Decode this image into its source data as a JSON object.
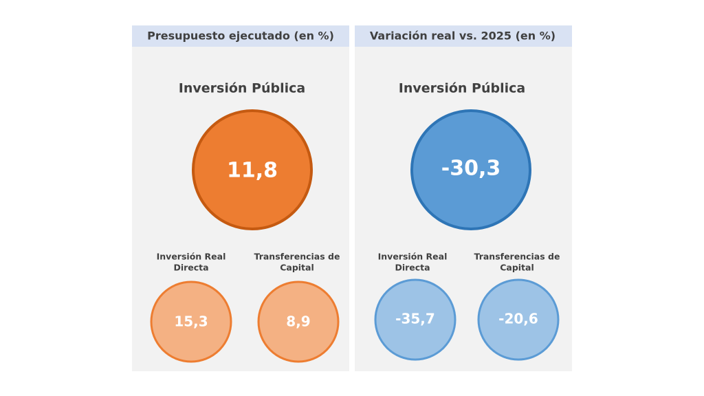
{
  "panels": [
    {
      "header": "Presupuesto ejecutado (en %)",
      "title": "Inversión Pública",
      "value": "11,8",
      "items": [
        {
          "label": [
            "Inversión Real",
            "Directa"
          ],
          "value": "15,3"
        },
        {
          "label": [
            "Transferencias de",
            "Capital"
          ],
          "value": "8,9"
        }
      ]
    },
    {
      "header": "Variación real vs. 2025 (en %)",
      "title": "Inversión Pública",
      "value": "-30,3",
      "items": [
        {
          "label": [
            "Inversión Real",
            "Directa"
          ],
          "value": "-35,7"
        },
        {
          "label": [
            "Transferencias de",
            "Capital"
          ],
          "value": "-20,6"
        }
      ]
    }
  ]
}
